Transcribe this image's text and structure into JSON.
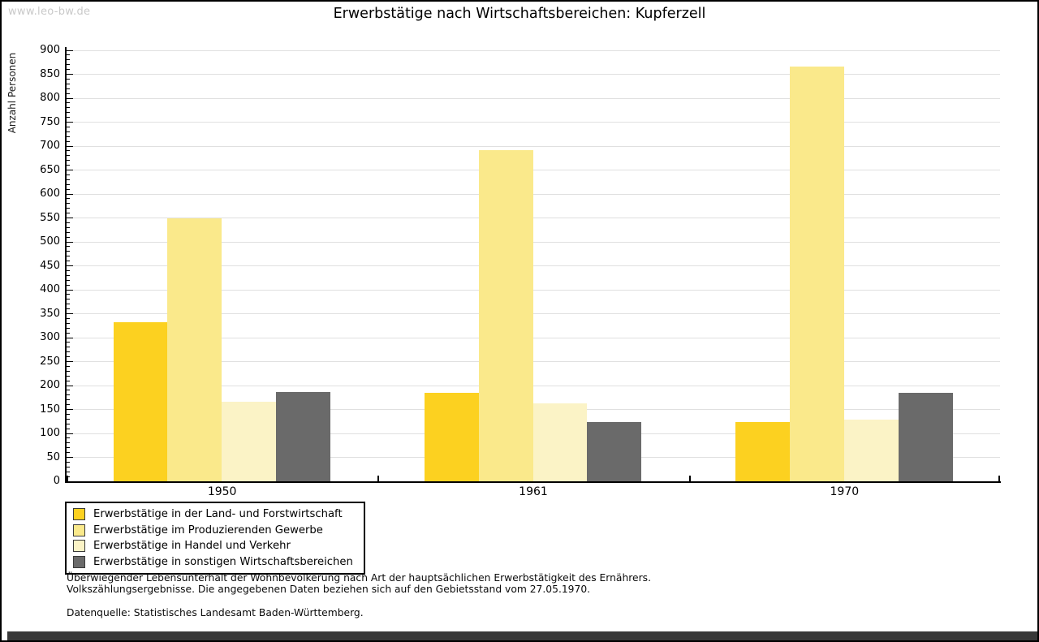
{
  "watermark": "www.leo-bw.de",
  "title": "Erwerbstätige nach Wirtschaftsbereichen: Kupferzell",
  "chart_data": {
    "type": "bar",
    "title": "Erwerbstätige nach Wirtschaftsbereichen: Kupferzell",
    "ylabel": "Anzahl Personen",
    "xlabel": "",
    "categories": [
      "1950",
      "1961",
      "1970"
    ],
    "series": [
      {
        "key": "land-forstwirtschaft",
        "name": "Erwerbstätige in der Land- und Forstwirtschaft",
        "color": "#fcd120",
        "values": [
          333,
          185,
          124
        ]
      },
      {
        "key": "produzierendes-gewerbe",
        "name": "Erwerbstätige im Produzierenden Gewerbe",
        "color": "#fae98b",
        "values": [
          550,
          692,
          866
        ]
      },
      {
        "key": "handel-verkehr",
        "name": "Erwerbstätige in Handel und Verkehr",
        "color": "#fbf3c6",
        "values": [
          166,
          163,
          128
        ]
      },
      {
        "key": "sonstige-bereiche",
        "name": "Erwerbstätige in sonstigen Wirtschaftsbereichen",
        "color": "#6a6a6a",
        "values": [
          187,
          124,
          184
        ]
      }
    ],
    "ylim": [
      0,
      900
    ],
    "ytick_step": 50,
    "yminor_step": 10,
    "grid": true,
    "gridline_color": "#e0e0e0",
    "legend_position": "bottom-left"
  },
  "footnotes": {
    "line1": "Überwiegender Lebensunterhalt der Wohnbevölkerung nach Art der hauptsächlichen Erwerbstätigkeit des Ernährers.",
    "line2": "Volkszählungsergebnisse. Die angegebenen Daten beziehen sich auf den Gebietsstand vom 27.05.1970.",
    "source": "Datenquelle: Statistisches Landesamt Baden-Württemberg."
  }
}
